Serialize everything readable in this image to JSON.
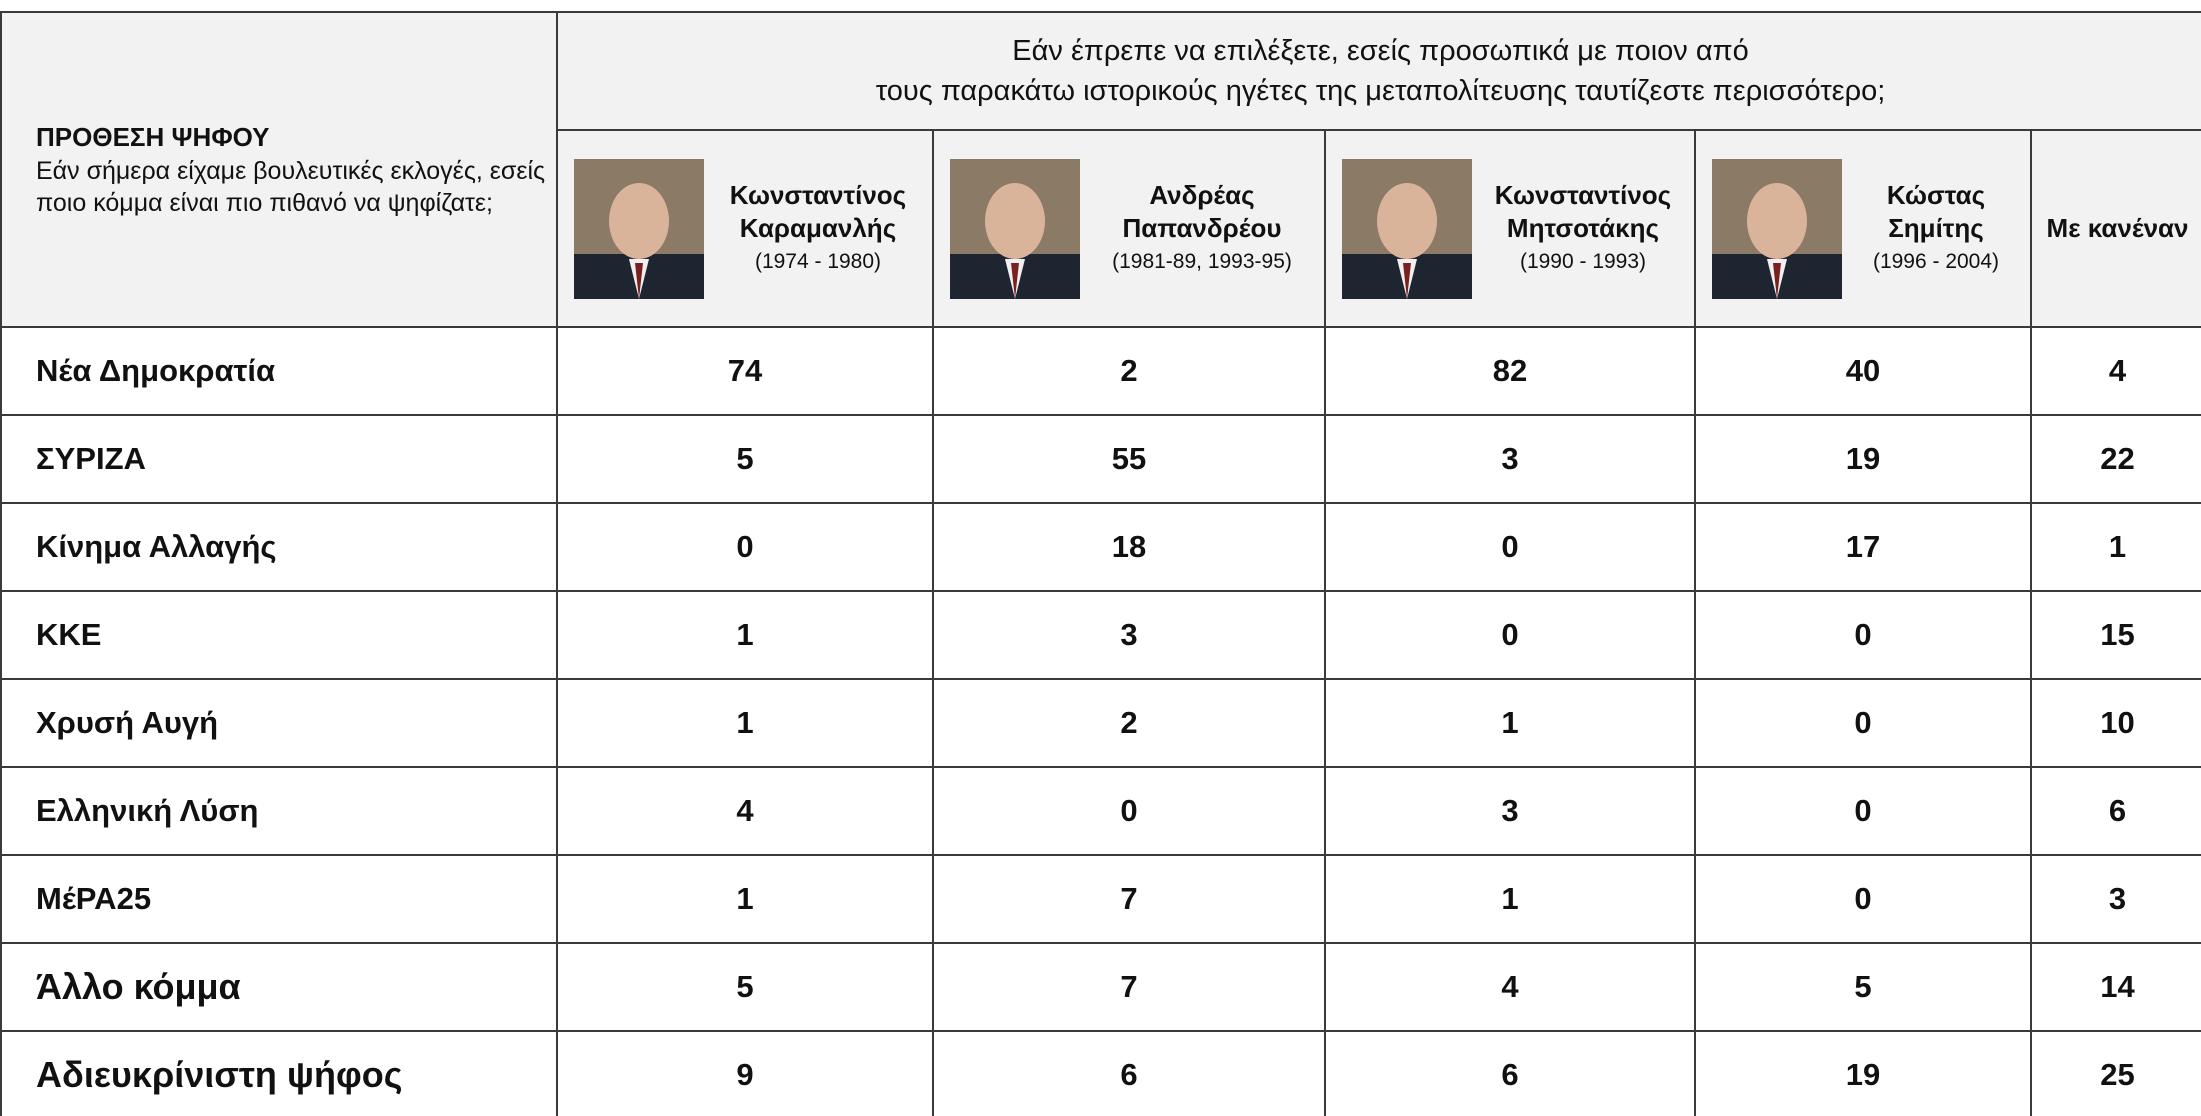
{
  "header": {
    "corner_title": "ΠΡΟΘΕΣΗ ΨΗΦΟΥ",
    "corner_text": "Εάν σήμερα είχαμε βουλευτικές εκλογές, εσείς ποιο κόμμα είναι πιο πιθανό να ψηφίζατε;",
    "question": [
      "Εάν έπρεπε να επιλέξετε, εσείς προσωπικά με ποιον από",
      "τους παρακάτω ιστορικούς ηγέτες της μεταπολίτευσης ταυτίζεστε περισσότερο;"
    ]
  },
  "columns": [
    {
      "name": [
        "Κωνσταντίνος",
        "Καραμανλής"
      ],
      "years": "(1974 - 1980)"
    },
    {
      "name": [
        "Ανδρέας",
        "Παπανδρέου"
      ],
      "years": "(1981-89, 1993-95)"
    },
    {
      "name": [
        "Κωνσταντίνος",
        "Μητσοτάκης"
      ],
      "years": "(1990 - 1993)"
    },
    {
      "name": [
        "Κώστας",
        "Σημίτης"
      ],
      "years": "(1996 - 2004)"
    },
    {
      "name": [
        "Με κανέναν"
      ]
    }
  ],
  "table": {
    "rows": [
      [
        "Νέα Δημοκρατία",
        "74",
        "2",
        "82",
        "40",
        "4"
      ],
      [
        "ΣΥΡΙΖΑ",
        "5",
        "55",
        "3",
        "19",
        "22"
      ],
      [
        "Κίνημα Αλλαγής",
        "0",
        "18",
        "0",
        "17",
        "1"
      ],
      [
        "ΚΚΕ",
        "1",
        "3",
        "0",
        "0",
        "15"
      ],
      [
        "Χρυσή Αυγή",
        "1",
        "2",
        "1",
        "0",
        "10"
      ],
      [
        "Ελληνική Λύση",
        "4",
        "0",
        "3",
        "0",
        "6"
      ],
      [
        "ΜέΡΑ25",
        "1",
        "7",
        "1",
        "0",
        "3"
      ],
      [
        "Άλλο κόμμα",
        "5",
        "7",
        "4",
        "5",
        "14"
      ],
      [
        "Αδιευκρίνιστη ψήφος",
        "9",
        "6",
        "6",
        "19",
        "25"
      ]
    ]
  }
}
